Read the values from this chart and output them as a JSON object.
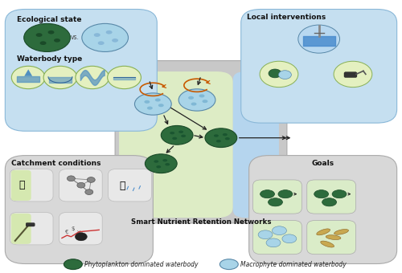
{
  "bg_color": "#ffffff",
  "phyto_color": "#2d6b3c",
  "macro_color": "#a8d4e8",
  "arrow_black": "#222222",
  "arrow_orange": "#c85a00",
  "center_label": "Smart Nutrient Retention Networks",
  "tl_title": "Ecological state",
  "tl_title2": "Waterbody type",
  "tr_title": "Local interventions",
  "bl_title": "Catchment conditions",
  "br_title": "Goals",
  "legend_phyto": "Phytoplankton dominated waterbody",
  "legend_macro": "Macrophyte dominated waterbody",
  "box_blue": "#c5dff0",
  "box_green_light": "#daecc8",
  "box_gray": "#d8d8d8",
  "box_gray_inner": "#e8e8e8",
  "icon_green_bg": "#e4f0c0",
  "icon_blue_bg": "#b8d8f0"
}
